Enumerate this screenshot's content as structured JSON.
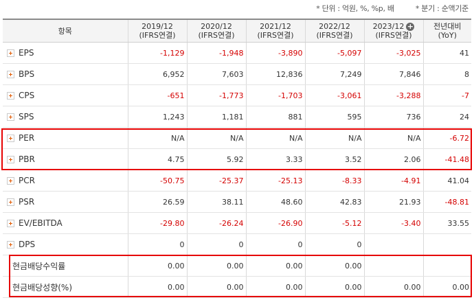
{
  "notes": {
    "unit": "* 단위 : 억원, %, %p, 배",
    "quarter": "* 분기 : 순액기준"
  },
  "header": {
    "item_col": "항목",
    "periods": [
      {
        "date": "2019/12",
        "basis": "(IFRS연결)"
      },
      {
        "date": "2020/12",
        "basis": "(IFRS연결)"
      },
      {
        "date": "2021/12",
        "basis": "(IFRS연결)"
      },
      {
        "date": "2022/12",
        "basis": "(IFRS연결)"
      },
      {
        "date": "2023/12",
        "basis": "(IFRS연결)"
      }
    ],
    "yoy_title": "전년대비",
    "yoy_sub": "(YoY)",
    "add_icon": "plus-circle-icon"
  },
  "colors": {
    "negative": "#d40000",
    "highlight_border": "#e60000"
  },
  "rows": [
    {
      "label": "EPS",
      "expandable": true,
      "values": [
        "-1,129",
        "-1,948",
        "-3,890",
        "-5,097",
        "-3,025",
        "41"
      ]
    },
    {
      "label": "BPS",
      "expandable": true,
      "values": [
        "6,952",
        "7,603",
        "12,836",
        "7,249",
        "7,846",
        "8"
      ]
    },
    {
      "label": "CPS",
      "expandable": true,
      "values": [
        "-651",
        "-1,773",
        "-1,703",
        "-3,061",
        "-3,288",
        "-7"
      ]
    },
    {
      "label": "SPS",
      "expandable": true,
      "values": [
        "1,243",
        "1,181",
        "881",
        "595",
        "736",
        "24"
      ]
    },
    {
      "label": "PER",
      "expandable": true,
      "values": [
        "N/A",
        "N/A",
        "N/A",
        "N/A",
        "N/A",
        "-6.72"
      ]
    },
    {
      "label": "PBR",
      "expandable": true,
      "values": [
        "4.75",
        "5.92",
        "3.33",
        "3.52",
        "2.06",
        "-41.48"
      ]
    },
    {
      "label": "PCR",
      "expandable": true,
      "values": [
        "-50.75",
        "-25.37",
        "-25.13",
        "-8.33",
        "-4.91",
        "41.04"
      ]
    },
    {
      "label": "PSR",
      "expandable": true,
      "values": [
        "26.59",
        "38.11",
        "48.60",
        "42.83",
        "21.93",
        "-48.81"
      ]
    },
    {
      "label": "EV/EBITDA",
      "expandable": true,
      "values": [
        "-29.80",
        "-26.24",
        "-26.90",
        "-5.12",
        "-3.40",
        "33.55"
      ]
    },
    {
      "label": "DPS",
      "expandable": true,
      "values": [
        "0",
        "0",
        "0",
        "0",
        "",
        ""
      ]
    },
    {
      "label": "현금배당수익률",
      "expandable": false,
      "values": [
        "0.00",
        "0.00",
        "0.00",
        "0.00",
        "",
        ""
      ]
    },
    {
      "label": "현금배당성향(%)",
      "expandable": false,
      "values": [
        "0.00",
        "0.00",
        "0.00",
        "0.00",
        "0.00",
        "0.00"
      ]
    }
  ]
}
